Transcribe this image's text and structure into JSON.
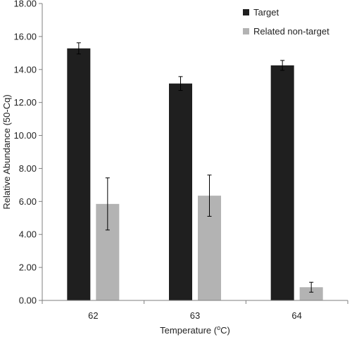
{
  "chart_data": {
    "type": "bar",
    "categories": [
      "62",
      "63",
      "64"
    ],
    "series": [
      {
        "name": "Target",
        "color": "#1f1f1f",
        "values": [
          15.28,
          13.15,
          14.25
        ],
        "errors": [
          0.34,
          0.42,
          0.3
        ]
      },
      {
        "name": "Related non-target",
        "color": "#b3b3b3",
        "values": [
          5.85,
          6.35,
          0.8
        ],
        "errors": [
          1.58,
          1.25,
          0.3
        ]
      }
    ],
    "xlabel": {
      "pre": "Temperature (",
      "sup": "o",
      "post": "C)"
    },
    "ylabel": "Relative Abundance (50-Cq)",
    "ylim": [
      0,
      18
    ],
    "yticks": [
      "0.00",
      "2.00",
      "4.00",
      "6.00",
      "8.00",
      "10.00",
      "12.00",
      "14.00",
      "16.00",
      "18.00"
    ],
    "grid": false,
    "legend_position": "top-right"
  }
}
